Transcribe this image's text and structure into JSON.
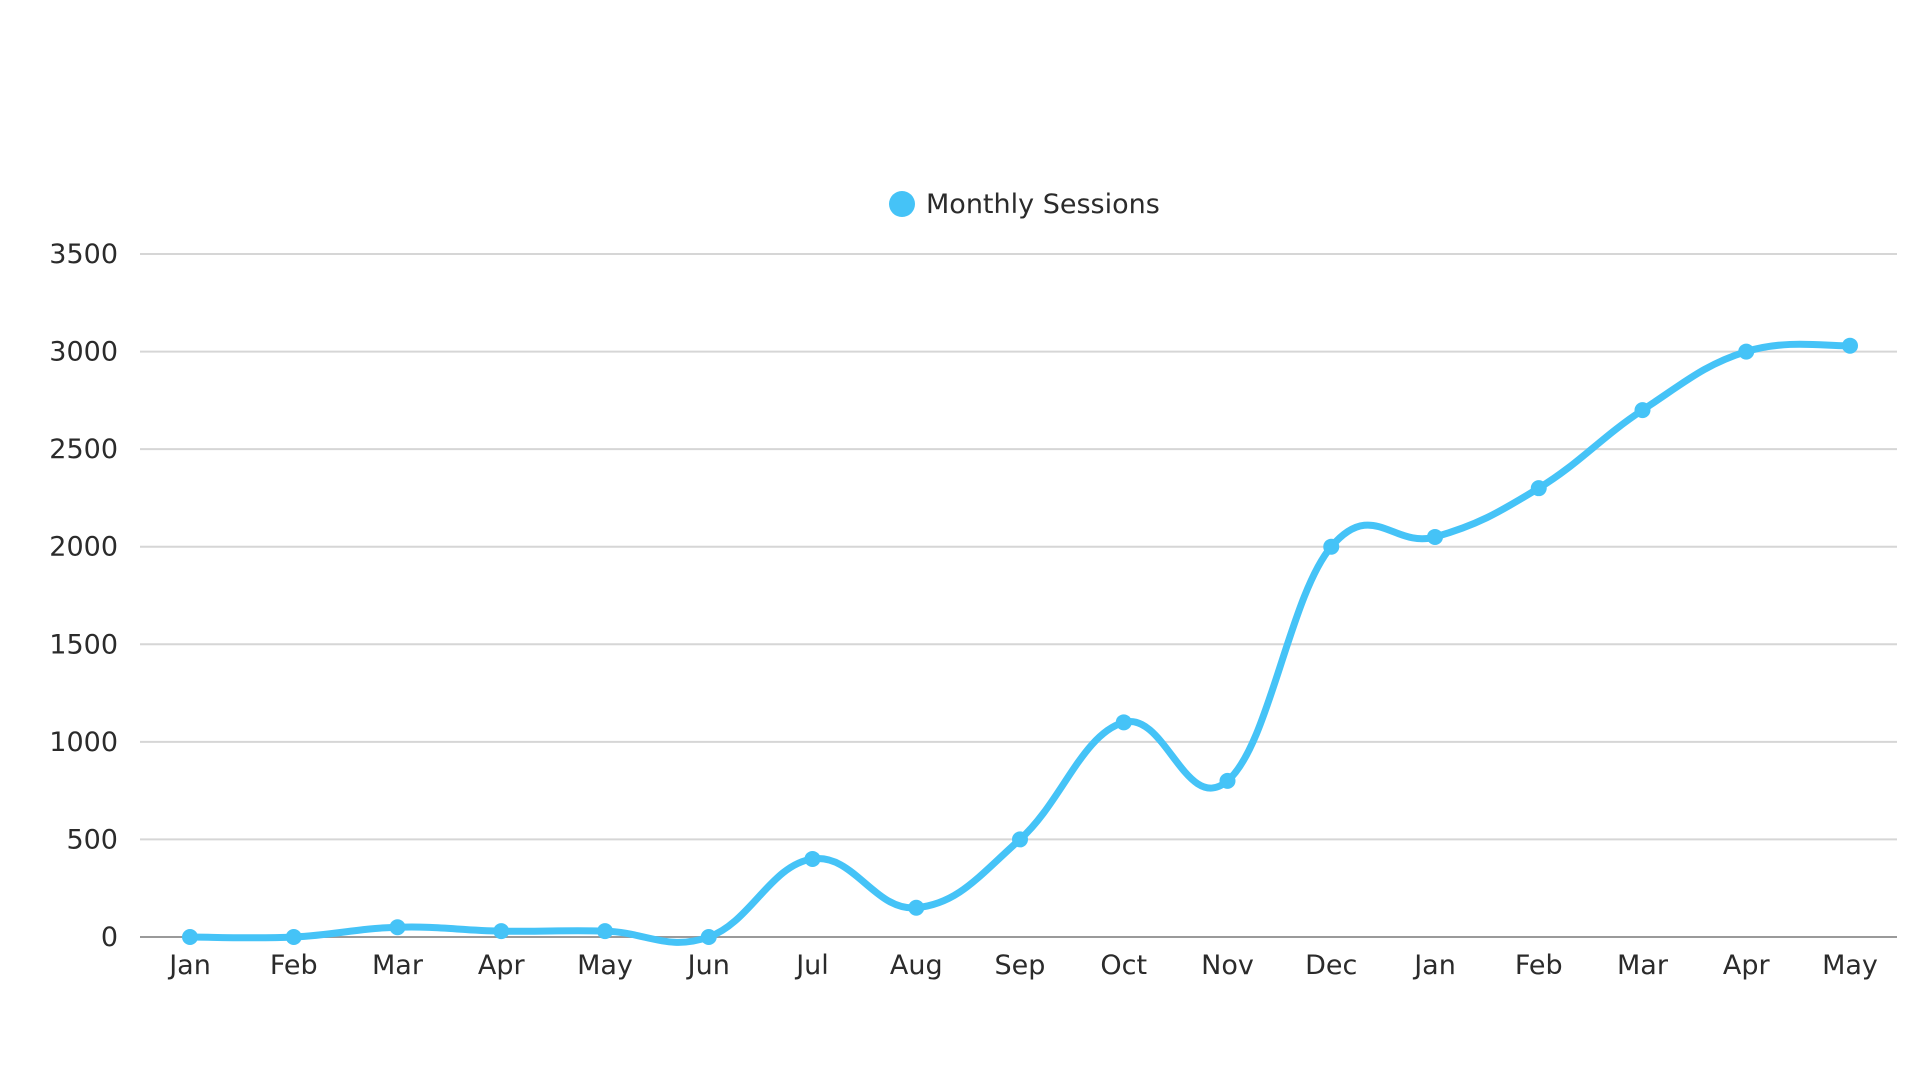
{
  "colors": {
    "series": "#45C3F7",
    "grid": "#d6d6d6",
    "axis": "#9a9a9a",
    "text": "#2b2b2b",
    "background": "#ffffff"
  },
  "chart_data": {
    "type": "line",
    "title": "",
    "xlabel": "",
    "ylabel": "",
    "categories": [
      "Jan",
      "Feb",
      "Mar",
      "Apr",
      "May",
      "Jun",
      "Jul",
      "Aug",
      "Sep",
      "Oct",
      "Nov",
      "Dec",
      "Jan",
      "Feb",
      "Mar",
      "Apr",
      "May"
    ],
    "series": [
      {
        "name": "Monthly Sessions",
        "values": [
          0,
          0,
          50,
          30,
          30,
          0,
          400,
          150,
          500,
          1100,
          800,
          2000,
          2050,
          2300,
          2700,
          3000,
          3030
        ]
      }
    ],
    "ylim": [
      0,
      3500
    ],
    "yticks": [
      0,
      500,
      1000,
      1500,
      2000,
      2500,
      3000,
      3500
    ],
    "grid": true,
    "smooth": true,
    "markers": true,
    "legend": {
      "position": "top-center",
      "entries": [
        "Monthly Sessions"
      ]
    }
  }
}
